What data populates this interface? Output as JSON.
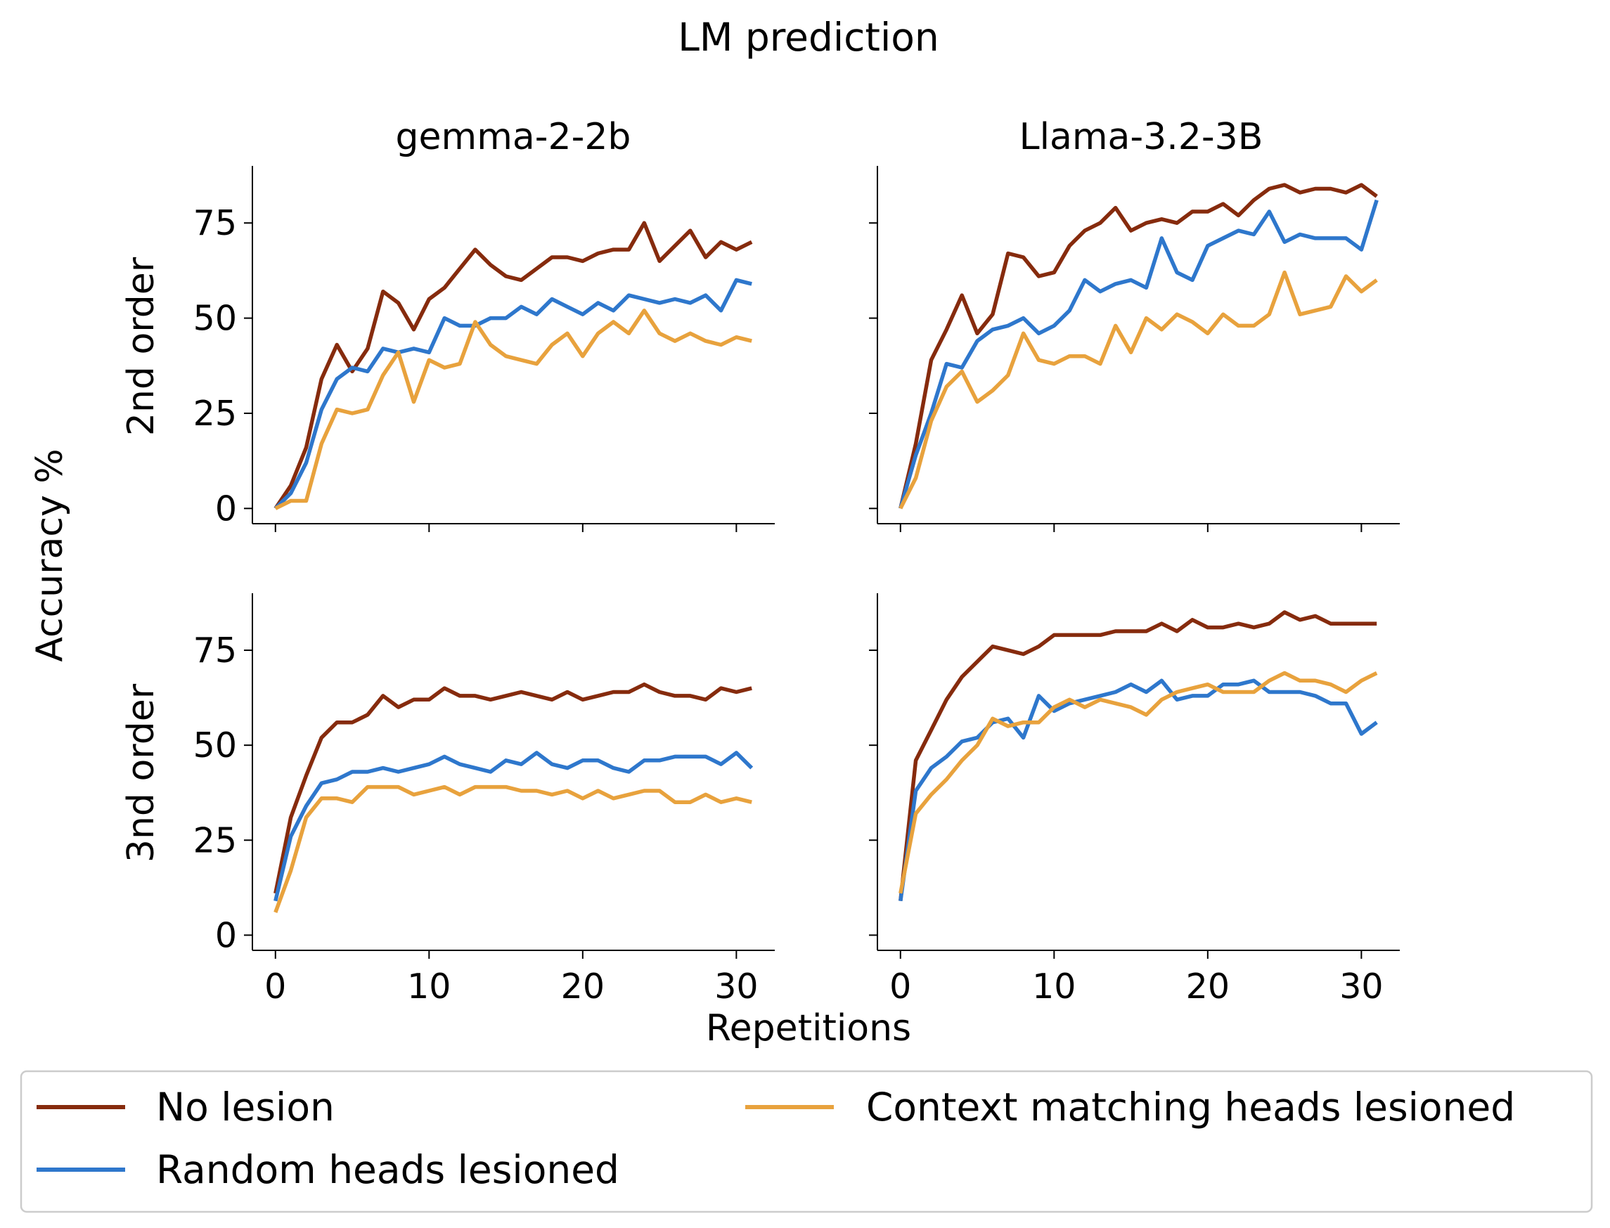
{
  "figure": {
    "title": "LM prediction",
    "xlabel": "Repetitions",
    "ylabel": "Accuracy %",
    "columns": [
      "gemma-2-2b",
      "Llama-3.2-3B"
    ],
    "rows": [
      "2nd order",
      "3nd order"
    ],
    "colors": {
      "no_lesion": "#862b0d",
      "random": "#2e77cc",
      "context": "#e8a23d"
    }
  },
  "chart_data": {
    "type": "line",
    "x": [
      0,
      1,
      2,
      3,
      4,
      5,
      6,
      7,
      8,
      9,
      10,
      11,
      12,
      13,
      14,
      15,
      16,
      17,
      18,
      19,
      20,
      21,
      22,
      23,
      24,
      25,
      26,
      27,
      28,
      29,
      30,
      31
    ],
    "xlim": [
      -1.5,
      32.5
    ],
    "ylim": [
      -4,
      90
    ],
    "xticks": [
      0,
      10,
      20,
      30
    ],
    "yticks": [
      0,
      25,
      50,
      75
    ],
    "grid": false,
    "legend": {
      "placement": "bottom",
      "entries": [
        {
          "key": "no_lesion",
          "label": "No lesion"
        },
        {
          "key": "random",
          "label": "Random heads lesioned"
        },
        {
          "key": "context",
          "label": "Context matching heads lesioned"
        }
      ]
    },
    "panels": [
      {
        "model": "gemma-2-2b",
        "order": "2nd order",
        "series": [
          {
            "key": "no_lesion",
            "values": [
              0,
              6,
              16,
              34,
              43,
              36,
              42,
              57,
              54,
              47,
              55,
              58,
              63,
              68,
              64,
              61,
              60,
              63,
              66,
              66,
              65,
              67,
              68,
              68,
              75,
              65,
              69,
              73,
              66,
              70,
              68,
              70
            ]
          },
          {
            "key": "random",
            "values": [
              0,
              4,
              12,
              26,
              34,
              37,
              36,
              42,
              41,
              42,
              41,
              50,
              48,
              48,
              50,
              50,
              53,
              51,
              55,
              53,
              51,
              54,
              52,
              56,
              55,
              54,
              55,
              54,
              56,
              52,
              60,
              59
            ]
          },
          {
            "key": "context",
            "values": [
              0,
              2,
              2,
              17,
              26,
              25,
              26,
              35,
              41,
              28,
              39,
              37,
              38,
              49,
              43,
              40,
              39,
              38,
              43,
              46,
              40,
              46,
              49,
              46,
              52,
              46,
              44,
              46,
              44,
              43,
              45,
              44
            ]
          }
        ]
      },
      {
        "model": "Llama-3.2-3B",
        "order": "2nd order",
        "series": [
          {
            "key": "no_lesion",
            "values": [
              0,
              17,
              39,
              47,
              56,
              46,
              51,
              67,
              66,
              61,
              62,
              69,
              73,
              75,
              79,
              73,
              75,
              76,
              75,
              78,
              78,
              80,
              77,
              81,
              84,
              85,
              83,
              84,
              84,
              83,
              85,
              82
            ]
          },
          {
            "key": "random",
            "values": [
              0,
              14,
              25,
              38,
              37,
              44,
              47,
              48,
              50,
              46,
              48,
              52,
              60,
              57,
              59,
              60,
              58,
              71,
              62,
              60,
              69,
              71,
              73,
              72,
              78,
              70,
              72,
              71,
              71,
              71,
              68,
              81
            ]
          },
          {
            "key": "context",
            "values": [
              0,
              8,
              23,
              32,
              36,
              28,
              31,
              35,
              46,
              39,
              38,
              40,
              40,
              38,
              48,
              41,
              50,
              47,
              51,
              49,
              46,
              51,
              48,
              48,
              51,
              62,
              51,
              52,
              53,
              61,
              57,
              60
            ]
          }
        ]
      },
      {
        "model": "gemma-2-2b",
        "order": "3nd order",
        "series": [
          {
            "key": "no_lesion",
            "values": [
              11,
              31,
              42,
              52,
              56,
              56,
              58,
              63,
              60,
              62,
              62,
              65,
              63,
              63,
              62,
              63,
              64,
              63,
              62,
              64,
              62,
              63,
              64,
              64,
              66,
              64,
              63,
              63,
              62,
              65,
              64,
              65
            ]
          },
          {
            "key": "random",
            "values": [
              9,
              26,
              34,
              40,
              41,
              43,
              43,
              44,
              43,
              44,
              45,
              47,
              45,
              44,
              43,
              46,
              45,
              48,
              45,
              44,
              46,
              46,
              44,
              43,
              46,
              46,
              47,
              47,
              47,
              45,
              48,
              44
            ]
          },
          {
            "key": "context",
            "values": [
              6,
              17,
              31,
              36,
              36,
              35,
              39,
              39,
              39,
              37,
              38,
              39,
              37,
              39,
              39,
              39,
              38,
              38,
              37,
              38,
              36,
              38,
              36,
              37,
              38,
              38,
              35,
              35,
              37,
              35,
              36,
              35
            ]
          }
        ]
      },
      {
        "model": "Llama-3.2-3B",
        "order": "3nd order",
        "series": [
          {
            "key": "no_lesion",
            "values": [
              9,
              46,
              54,
              62,
              68,
              72,
              76,
              75,
              74,
              76,
              79,
              79,
              79,
              79,
              80,
              80,
              80,
              82,
              80,
              83,
              81,
              81,
              82,
              81,
              82,
              85,
              83,
              84,
              82,
              82,
              82,
              82
            ]
          },
          {
            "key": "random",
            "values": [
              9,
              38,
              44,
              47,
              51,
              52,
              56,
              57,
              52,
              63,
              59,
              61,
              62,
              63,
              64,
              66,
              64,
              67,
              62,
              63,
              63,
              66,
              66,
              67,
              64,
              64,
              64,
              63,
              61,
              61,
              53,
              56
            ]
          },
          {
            "key": "context",
            "values": [
              11,
              32,
              37,
              41,
              46,
              50,
              57,
              55,
              56,
              56,
              60,
              62,
              60,
              62,
              61,
              60,
              58,
              62,
              64,
              65,
              66,
              64,
              64,
              64,
              67,
              69,
              67,
              67,
              66,
              64,
              67,
              69
            ]
          }
        ]
      }
    ]
  }
}
